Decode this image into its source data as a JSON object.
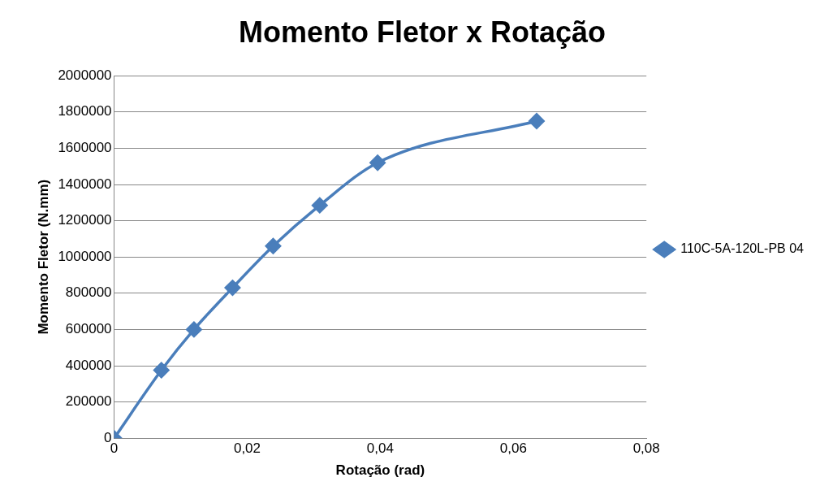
{
  "chart_data": {
    "type": "scatter",
    "title": "Momento Fletor x Rotação",
    "xlabel": "Rotação (rad)",
    "ylabel": "Momento Fletor (N.mm)",
    "x": [
      0,
      0.0071,
      0.012,
      0.0178,
      0.0239,
      0.0309,
      0.0396,
      0.0635
    ],
    "series": [
      {
        "name": "110C-5A-120L-PB 04",
        "color": "#4a7ebb",
        "type": "line",
        "values": [
          0,
          375000,
          600000,
          830000,
          1060000,
          1285000,
          1520000,
          1750000
        ]
      }
    ],
    "xlim": [
      0,
      0.08
    ],
    "xticks": [
      {
        "value": 0,
        "label": "0"
      },
      {
        "value": 0.02,
        "label": "0,02"
      },
      {
        "value": 0.04,
        "label": "0,04"
      },
      {
        "value": 0.06,
        "label": "0,06"
      },
      {
        "value": 0.08,
        "label": "0,08"
      }
    ],
    "ylim": [
      0,
      2000000
    ],
    "yticks": [
      0,
      200000,
      400000,
      600000,
      800000,
      1000000,
      1200000,
      1400000,
      1600000,
      1800000,
      2000000
    ],
    "grid": "y",
    "legend": "right",
    "marker": "diamond",
    "line_style": "solid"
  }
}
